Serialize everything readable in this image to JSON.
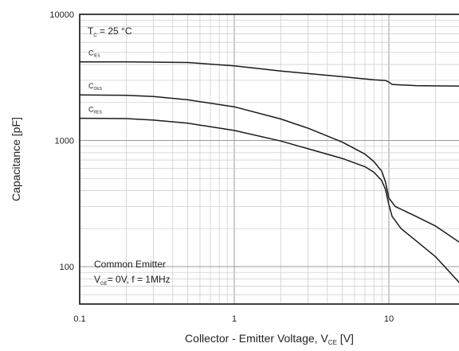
{
  "chart_data": {
    "type": "line",
    "x_scale": "log",
    "y_scale": "log",
    "xlim": [
      0.1,
      30
    ],
    "ylim": [
      50,
      10000
    ],
    "grid": true,
    "x_ticks": [
      {
        "value": 0.1,
        "label": "0.1"
      },
      {
        "value": 1,
        "label": "1"
      },
      {
        "value": 10,
        "label": "10"
      }
    ],
    "y_ticks": [
      {
        "value": 100,
        "label": "100"
      },
      {
        "value": 1000,
        "label": "1000"
      },
      {
        "value": 10000,
        "label": "10000"
      }
    ],
    "xlabel": {
      "main": "Collector - Emitter Voltage, V",
      "sub": "CE",
      "tail": " [V]"
    },
    "ylabel": "Capacitance [pF]",
    "annotations": {
      "tc": {
        "main": "T",
        "sub": "C",
        "tail": " = 25 °C"
      },
      "mode_line1": "Common Emitter",
      "mode_line2": {
        "main": "V",
        "sub": "GE",
        "tail": "= 0V, f = 1MHz"
      }
    },
    "series": [
      {
        "name": "C",
        "sub": "IES",
        "x": [
          0.1,
          0.2,
          0.5,
          1,
          2,
          5,
          8,
          9.5,
          10,
          10.5,
          15,
          20,
          30
        ],
        "y": [
          4200,
          4200,
          4150,
          3900,
          3550,
          3200,
          3030,
          2990,
          2900,
          2780,
          2720,
          2710,
          2700
        ]
      },
      {
        "name": "C",
        "sub": "OES",
        "x": [
          0.1,
          0.2,
          0.3,
          0.5,
          1,
          2,
          3,
          5,
          7,
          8,
          9,
          9.5,
          10,
          11,
          15,
          20,
          30
        ],
        "y": [
          2300,
          2280,
          2230,
          2100,
          1850,
          1480,
          1250,
          970,
          780,
          680,
          570,
          470,
          350,
          300,
          250,
          210,
          150
        ]
      },
      {
        "name": "C",
        "sub": "RES",
        "x": [
          0.1,
          0.2,
          0.3,
          0.5,
          1,
          2,
          3,
          5,
          7,
          8,
          9,
          9.5,
          10,
          10.5,
          12,
          15,
          20,
          30
        ],
        "y": [
          1500,
          1490,
          1450,
          1370,
          1200,
          990,
          860,
          720,
          620,
          560,
          480,
          410,
          310,
          250,
          200,
          160,
          120,
          70
        ]
      }
    ]
  }
}
